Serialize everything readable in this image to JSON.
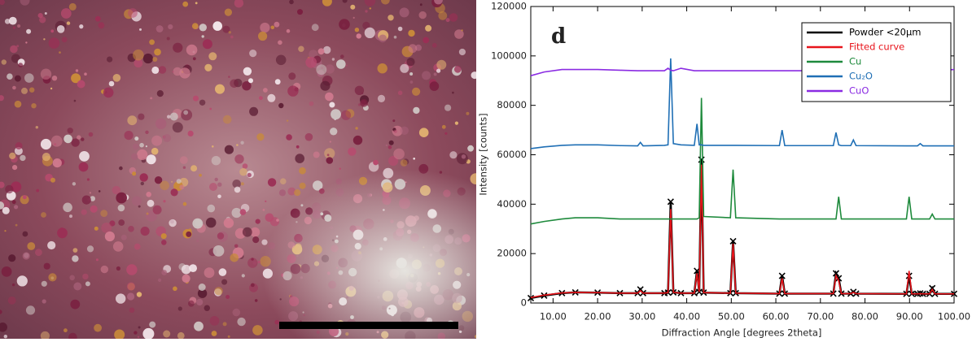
{
  "chart_data": {
    "type": "line",
    "annotation": "d",
    "xlabel": "Diffraction Angle [degrees 2theta]",
    "ylabel": "Intensity [counts]",
    "x": [
      5,
      8,
      12,
      15,
      20,
      25,
      29,
      29.6,
      30.2,
      35,
      35.8,
      36.4,
      37,
      38.7,
      41.7,
      42.3,
      42.8,
      43.3,
      43.8,
      49.8,
      50.4,
      51,
      60.8,
      61.4,
      62,
      72.9,
      73.5,
      74.1,
      74.7,
      76.8,
      77.4,
      78,
      89.3,
      89.9,
      90.5,
      91.8,
      92.4,
      93,
      94.5,
      95.1,
      95.7,
      100
    ],
    "series": [
      {
        "name": "Powder <20μm",
        "color": "#000000",
        "marker": "x",
        "values": [
          2000,
          3000,
          4000,
          4300,
          4200,
          4000,
          4000,
          5500,
          4000,
          4000,
          4200,
          41000,
          4300,
          4000,
          4000,
          13000,
          4500,
          58000,
          4200,
          4000,
          25000,
          4000,
          3800,
          11000,
          3800,
          3800,
          12000,
          10000,
          3800,
          3800,
          4500,
          3800,
          3700,
          11000,
          3700,
          3700,
          3900,
          3700,
          3700,
          6000,
          3700,
          3700
        ]
      },
      {
        "name": "Fitted curve",
        "color": "#e8141b",
        "values": [
          2200,
          3200,
          4100,
          4300,
          4200,
          4000,
          4000,
          5000,
          4000,
          4000,
          4200,
          38000,
          4300,
          4000,
          4000,
          12000,
          4500,
          56000,
          4200,
          4000,
          24000,
          4000,
          3800,
          10000,
          3800,
          3800,
          11000,
          9000,
          3800,
          3800,
          4300,
          3800,
          3700,
          13000,
          3700,
          3700,
          3800,
          3700,
          3700,
          5500,
          3700,
          3700
        ]
      },
      {
        "name": "Cu",
        "color": "#1e8a3c",
        "values": [
          32000,
          33000,
          34000,
          34500,
          34500,
          34000,
          34000,
          34000,
          34000,
          34000,
          34000,
          34000,
          34000,
          34000,
          34000,
          34000,
          34500,
          83000,
          35000,
          34500,
          54000,
          34500,
          34000,
          34000,
          34000,
          34000,
          34000,
          43000,
          34000,
          34000,
          34000,
          34000,
          34000,
          43000,
          34000,
          34000,
          34000,
          34000,
          34000,
          36000,
          34000,
          34000
        ]
      },
      {
        "name": "Cu₂O",
        "color": "#1f6fb5",
        "values": [
          62500,
          63200,
          63800,
          64000,
          64000,
          63700,
          63600,
          65000,
          63600,
          63800,
          64000,
          99000,
          64500,
          64000,
          63800,
          72500,
          64000,
          64000,
          63800,
          63800,
          63800,
          63800,
          63700,
          70000,
          63700,
          63700,
          69000,
          64000,
          63700,
          63700,
          66000,
          63700,
          63600,
          63600,
          63600,
          63600,
          64500,
          63600,
          63600,
          63600,
          63600,
          63600
        ]
      },
      {
        "name": "CuO",
        "color": "#8a2be2",
        "values": [
          92000,
          93500,
          94500,
          94500,
          94500,
          94200,
          94000,
          94000,
          94000,
          94000,
          95000,
          94200,
          94000,
          95000,
          94000,
          94000,
          94000,
          94000,
          94000,
          94000,
          94000,
          94000,
          94000,
          94000,
          94000,
          94000,
          94000,
          94000,
          94000,
          94000,
          94000,
          94000,
          94000,
          94000,
          94000,
          94000,
          94000,
          94000,
          94000,
          94000,
          94000,
          94500
        ]
      }
    ],
    "xlim": [
      5,
      100
    ],
    "xticks": [
      {
        "value": 10,
        "label": "10.00"
      },
      {
        "value": 20,
        "label": "20.00"
      },
      {
        "value": 30,
        "label": "30.00"
      },
      {
        "value": 40,
        "label": "40.00"
      },
      {
        "value": 50,
        "label": "50.00"
      },
      {
        "value": 60,
        "label": "60.00"
      },
      {
        "value": 70,
        "label": "70.00"
      },
      {
        "value": 80,
        "label": "80.00"
      },
      {
        "value": 90,
        "label": "90.00"
      },
      {
        "value": 100,
        "label": "100.00"
      }
    ],
    "ylim": [
      0,
      120000
    ],
    "yticks": [
      0,
      20000,
      40000,
      60000,
      80000,
      100000,
      120000
    ],
    "legend": "upper right"
  }
}
